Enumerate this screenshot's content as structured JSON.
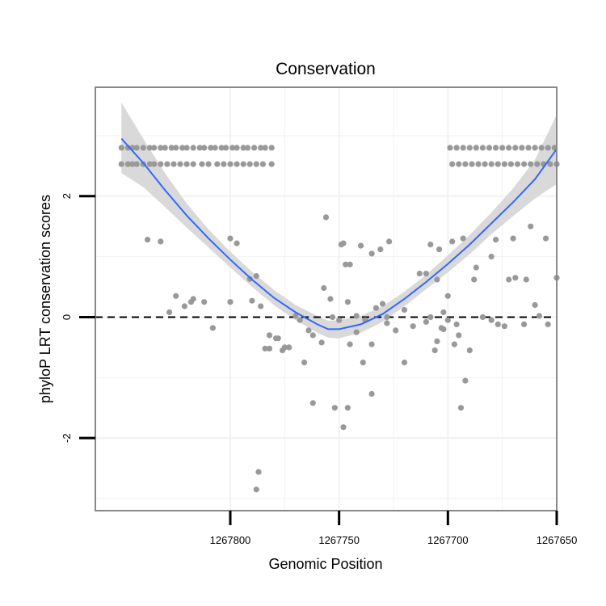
{
  "chart_data": {
    "type": "scatter",
    "title": "Conservation",
    "xlabel": "Genomic Position",
    "ylabel": "phyloP LRT conservation scores",
    "x_reversed": true,
    "xlim": [
      1267862,
      1267650
    ],
    "ylim": [
      -3.2,
      3.8
    ],
    "x_ticks": [
      1267800,
      1267750,
      1267700,
      1267650
    ],
    "x_tick_labels": [
      "1267800",
      "1267750",
      "1267700",
      "1267650"
    ],
    "y_ticks": [
      -2,
      0,
      2
    ],
    "y_tick_labels": [
      "-2",
      "0",
      "2"
    ],
    "grid": true,
    "reference_line": {
      "y": 0,
      "style": "dashed"
    },
    "colors": {
      "points": "#999999",
      "smooth_line": "#3366FF",
      "ribbon": "#d9d9d9",
      "panel_border": "#888888",
      "grid": "#f2f2f2"
    },
    "points": [
      [
        1267850,
        2.8
      ],
      [
        1267847,
        2.8
      ],
      [
        1267845,
        2.8
      ],
      [
        1267843,
        2.8
      ],
      [
        1267840,
        2.8
      ],
      [
        1267837,
        2.8
      ],
      [
        1267835,
        2.8
      ],
      [
        1267832,
        2.8
      ],
      [
        1267830,
        2.8
      ],
      [
        1267827,
        2.8
      ],
      [
        1267825,
        2.8
      ],
      [
        1267822,
        2.8
      ],
      [
        1267820,
        2.8
      ],
      [
        1267817,
        2.8
      ],
      [
        1267814,
        2.8
      ],
      [
        1267812,
        2.8
      ],
      [
        1267809,
        2.8
      ],
      [
        1267807,
        2.8
      ],
      [
        1267804,
        2.8
      ],
      [
        1267802,
        2.8
      ],
      [
        1267799,
        2.8
      ],
      [
        1267797,
        2.8
      ],
      [
        1267794,
        2.8
      ],
      [
        1267792,
        2.8
      ],
      [
        1267789,
        2.8
      ],
      [
        1267786,
        2.8
      ],
      [
        1267784,
        2.8
      ],
      [
        1267781,
        2.8
      ],
      [
        1267850,
        2.53
      ],
      [
        1267847,
        2.53
      ],
      [
        1267845,
        2.53
      ],
      [
        1267843,
        2.53
      ],
      [
        1267840,
        2.53
      ],
      [
        1267837,
        2.53
      ],
      [
        1267835,
        2.53
      ],
      [
        1267832,
        2.53
      ],
      [
        1267829,
        2.53
      ],
      [
        1267826,
        2.53
      ],
      [
        1267823,
        2.53
      ],
      [
        1267820,
        2.53
      ],
      [
        1267817,
        2.53
      ],
      [
        1267813,
        2.53
      ],
      [
        1267810,
        2.53
      ],
      [
        1267806,
        2.53
      ],
      [
        1267803,
        2.53
      ],
      [
        1267800,
        2.53
      ],
      [
        1267797,
        2.53
      ],
      [
        1267794,
        2.53
      ],
      [
        1267791,
        2.53
      ],
      [
        1267788,
        2.53
      ],
      [
        1267785,
        2.53
      ],
      [
        1267781,
        2.53
      ],
      [
        1267699,
        2.8
      ],
      [
        1267696,
        2.8
      ],
      [
        1267693,
        2.8
      ],
      [
        1267690,
        2.8
      ],
      [
        1267687,
        2.8
      ],
      [
        1267684,
        2.8
      ],
      [
        1267681,
        2.8
      ],
      [
        1267678,
        2.8
      ],
      [
        1267675,
        2.8
      ],
      [
        1267672,
        2.8
      ],
      [
        1267669,
        2.8
      ],
      [
        1267666,
        2.8
      ],
      [
        1267663,
        2.8
      ],
      [
        1267660,
        2.8
      ],
      [
        1267657,
        2.8
      ],
      [
        1267654,
        2.8
      ],
      [
        1267651,
        2.8
      ],
      [
        1267698,
        2.53
      ],
      [
        1267695,
        2.53
      ],
      [
        1267692,
        2.53
      ],
      [
        1267689,
        2.53
      ],
      [
        1267686,
        2.53
      ],
      [
        1267683,
        2.53
      ],
      [
        1267680,
        2.53
      ],
      [
        1267677,
        2.53
      ],
      [
        1267674,
        2.53
      ],
      [
        1267671,
        2.53
      ],
      [
        1267668,
        2.53
      ],
      [
        1267665,
        2.53
      ],
      [
        1267662,
        2.53
      ],
      [
        1267659,
        2.53
      ],
      [
        1267656,
        2.53
      ],
      [
        1267653,
        2.53
      ],
      [
        1267650,
        2.53
      ],
      [
        1267838,
        1.28
      ],
      [
        1267832,
        1.25
      ],
      [
        1267800,
        1.3
      ],
      [
        1267797,
        1.22
      ],
      [
        1267756,
        1.65
      ],
      [
        1267749,
        1.2
      ],
      [
        1267748,
        1.22
      ],
      [
        1267747,
        0.87
      ],
      [
        1267745,
        0.87
      ],
      [
        1267740,
        1.18
      ],
      [
        1267735,
        1.05
      ],
      [
        1267731,
        1.12
      ],
      [
        1267727,
        1.25
      ],
      [
        1267708,
        1.2
      ],
      [
        1267704,
        1.12
      ],
      [
        1267698,
        1.25
      ],
      [
        1267693,
        1.3
      ],
      [
        1267678,
        1.28
      ],
      [
        1267670,
        1.3
      ],
      [
        1267662,
        1.5
      ],
      [
        1267655,
        1.3
      ],
      [
        1267828,
        0.08
      ],
      [
        1267825,
        0.35
      ],
      [
        1267821,
        0.18
      ],
      [
        1267818,
        0.25
      ],
      [
        1267817,
        0.3
      ],
      [
        1267812,
        0.25
      ],
      [
        1267808,
        -0.18
      ],
      [
        1267800,
        0.25
      ],
      [
        1267791,
        0.63
      ],
      [
        1267788,
        0.68
      ],
      [
        1267786,
        0.18
      ],
      [
        1267782,
        -0.3
      ],
      [
        1267779,
        -0.35
      ],
      [
        1267776,
        -0.55
      ],
      [
        1267773,
        -0.5
      ],
      [
        1267770,
        0.02
      ],
      [
        1267768,
        -0.05
      ],
      [
        1267764,
        -0.22
      ],
      [
        1267762,
        -0.3
      ],
      [
        1267758,
        -0.42
      ],
      [
        1267757,
        0.48
      ],
      [
        1267754,
        0.3
      ],
      [
        1267750,
        -0.05
      ],
      [
        1267746,
        0.25
      ],
      [
        1267742,
        0.02
      ],
      [
        1267738,
        -0.05
      ],
      [
        1267735,
        -0.45
      ],
      [
        1267730,
        0.22
      ],
      [
        1267728,
        -0.1
      ],
      [
        1267724,
        -0.22
      ],
      [
        1267720,
        0.12
      ],
      [
        1267716,
        -0.15
      ],
      [
        1267713,
        0.72
      ],
      [
        1267710,
        0.72
      ],
      [
        1267706,
        -0.55
      ],
      [
        1267703,
        -0.18
      ],
      [
        1267702,
        0.08
      ],
      [
        1267700,
        0.35
      ],
      [
        1267697,
        -0.45
      ],
      [
        1267695,
        -0.3
      ],
      [
        1267690,
        -0.55
      ],
      [
        1267688,
        0.62
      ],
      [
        1267684,
        0.0
      ],
      [
        1267680,
        -0.05
      ],
      [
        1267677,
        -0.12
      ],
      [
        1267674,
        -0.15
      ],
      [
        1267669,
        0.65
      ],
      [
        1267664,
        0.62
      ],
      [
        1267658,
        0.02
      ],
      [
        1267654,
        -0.12
      ],
      [
        1267650,
        0.65
      ],
      [
        1267790,
        0.27
      ],
      [
        1267784,
        -0.52
      ],
      [
        1267782,
        -0.52
      ],
      [
        1267778,
        -0.35
      ],
      [
        1267775,
        -0.5
      ],
      [
        1267766,
        -0.75
      ],
      [
        1267762,
        -1.42
      ],
      [
        1267752,
        -1.5
      ],
      [
        1267748,
        -1.82
      ],
      [
        1267746,
        -1.5
      ],
      [
        1267742,
        -0.25
      ],
      [
        1267739,
        -0.75
      ],
      [
        1267735,
        -1.27
      ],
      [
        1267720,
        -0.75
      ],
      [
        1267710,
        -0.08
      ],
      [
        1267708,
        -0.0
      ],
      [
        1267705,
        0.62
      ],
      [
        1267700,
        -0.05
      ],
      [
        1267696,
        -0.12
      ],
      [
        1267694,
        -1.5
      ],
      [
        1267692,
        -1.05
      ],
      [
        1267687,
        0.82
      ],
      [
        1267680,
        1.0
      ],
      [
        1267672,
        0.62
      ],
      [
        1267665,
        -0.12
      ],
      [
        1267660,
        0.2
      ],
      [
        1267787,
        -2.56
      ],
      [
        1267788,
        -2.85
      ],
      [
        1267705,
        -0.4
      ],
      [
        1267702,
        -0.2
      ],
      [
        1267745,
        -0.45
      ],
      [
        1267728,
        0.0
      ],
      [
        1267733,
        0.15
      ],
      [
        1267753,
        0.0
      ]
    ],
    "smooth_line": [
      [
        1267850,
        2.95
      ],
      [
        1267840,
        2.55
      ],
      [
        1267830,
        2.1
      ],
      [
        1267820,
        1.68
      ],
      [
        1267810,
        1.3
      ],
      [
        1267800,
        0.95
      ],
      [
        1267790,
        0.62
      ],
      [
        1267780,
        0.32
      ],
      [
        1267770,
        0.08
      ],
      [
        1267760,
        -0.12
      ],
      [
        1267755,
        -0.2
      ],
      [
        1267750,
        -0.2
      ],
      [
        1267740,
        -0.12
      ],
      [
        1267730,
        0.05
      ],
      [
        1267720,
        0.3
      ],
      [
        1267710,
        0.58
      ],
      [
        1267700,
        0.88
      ],
      [
        1267690,
        1.2
      ],
      [
        1267680,
        1.55
      ],
      [
        1267670,
        1.9
      ],
      [
        1267660,
        2.28
      ],
      [
        1267650,
        2.78
      ]
    ],
    "ribbon_upper": [
      [
        1267850,
        3.55
      ],
      [
        1267840,
        2.95
      ],
      [
        1267830,
        2.38
      ],
      [
        1267820,
        1.88
      ],
      [
        1267810,
        1.45
      ],
      [
        1267800,
        1.08
      ],
      [
        1267790,
        0.75
      ],
      [
        1267780,
        0.45
      ],
      [
        1267770,
        0.2
      ],
      [
        1267760,
        0.02
      ],
      [
        1267755,
        -0.06
      ],
      [
        1267750,
        -0.05
      ],
      [
        1267740,
        0.02
      ],
      [
        1267730,
        0.18
      ],
      [
        1267720,
        0.42
      ],
      [
        1267710,
        0.7
      ],
      [
        1267700,
        1.02
      ],
      [
        1267690,
        1.36
      ],
      [
        1267680,
        1.73
      ],
      [
        1267670,
        2.13
      ],
      [
        1267660,
        2.6
      ],
      [
        1267650,
        3.35
      ]
    ],
    "ribbon_lower": [
      [
        1267850,
        2.38
      ],
      [
        1267840,
        2.15
      ],
      [
        1267830,
        1.82
      ],
      [
        1267820,
        1.48
      ],
      [
        1267810,
        1.15
      ],
      [
        1267800,
        0.82
      ],
      [
        1267790,
        0.5
      ],
      [
        1267780,
        0.2
      ],
      [
        1267770,
        -0.05
      ],
      [
        1267760,
        -0.26
      ],
      [
        1267755,
        -0.34
      ],
      [
        1267750,
        -0.35
      ],
      [
        1267740,
        -0.26
      ],
      [
        1267730,
        -0.08
      ],
      [
        1267720,
        0.18
      ],
      [
        1267710,
        0.46
      ],
      [
        1267700,
        0.74
      ],
      [
        1267690,
        1.04
      ],
      [
        1267680,
        1.37
      ],
      [
        1267670,
        1.67
      ],
      [
        1267660,
        1.96
      ],
      [
        1267650,
        2.2
      ]
    ]
  }
}
